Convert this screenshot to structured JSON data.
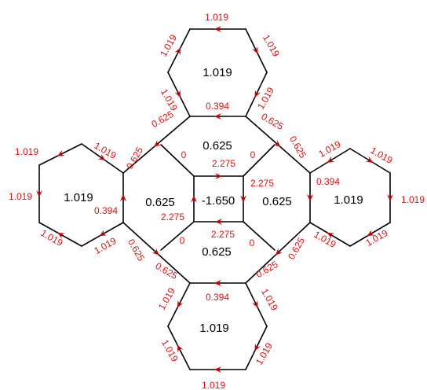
{
  "colors": {
    "ring_label": "#000000",
    "edge_label": "#dd1111",
    "arrow": "#cc0000",
    "bond": "#000000"
  },
  "ring_labels": {
    "hex_top": "1.019",
    "hex_left": "1.019",
    "hex_right": "1.019",
    "hex_bottom": "1.019",
    "oct_top": "0.625",
    "oct_left": "0.625",
    "oct_right": "0.625",
    "oct_bottom": "0.625",
    "square_center": "-1.650"
  },
  "edge_labels": {
    "top_hex_top": "1.019",
    "top_hex_upper_left": "1.019",
    "top_hex_upper_right": "1.019",
    "top_hex_lower_left": "1.019",
    "top_hex_lower_right": "1.019",
    "top_shared": "0.394",
    "left_hex_upper_left": "1.019",
    "left_hex_upper_right": "1.019",
    "left_hex_left": "1.019",
    "left_hex_lower_left": "1.019",
    "left_hex_lower_right": "1.019",
    "left_shared": "0.394",
    "right_hex_upper_left": "1.019",
    "right_hex_upper_right": "1.019",
    "right_hex_right": "1.019",
    "right_hex_lower_left": "1.019",
    "right_hex_lower_right": "1.019",
    "right_shared": "0.394",
    "bottom_hex_bottom": "1.019",
    "bottom_hex_upper_left": "1.019",
    "bottom_hex_upper_right": "1.019",
    "bottom_hex_lower_left": "1.019",
    "bottom_hex_lower_right": "1.019",
    "bottom_shared": "0.394",
    "link_top_left": "0.625",
    "link_top_right": "0.625",
    "link_left_top": "0.625",
    "link_left_bottom": "0.625",
    "link_right_top": "0.625",
    "link_right_bottom": "0.625",
    "link_bottom_left": "0.625",
    "link_bottom_right": "0.625",
    "diag_top_left": "0",
    "diag_top_right": "0",
    "diag_bottom_left": "0",
    "diag_bottom_right": "0",
    "square_top": "2.275",
    "square_right": "2.275",
    "square_bottom": "2.275",
    "square_left": "2.275"
  }
}
